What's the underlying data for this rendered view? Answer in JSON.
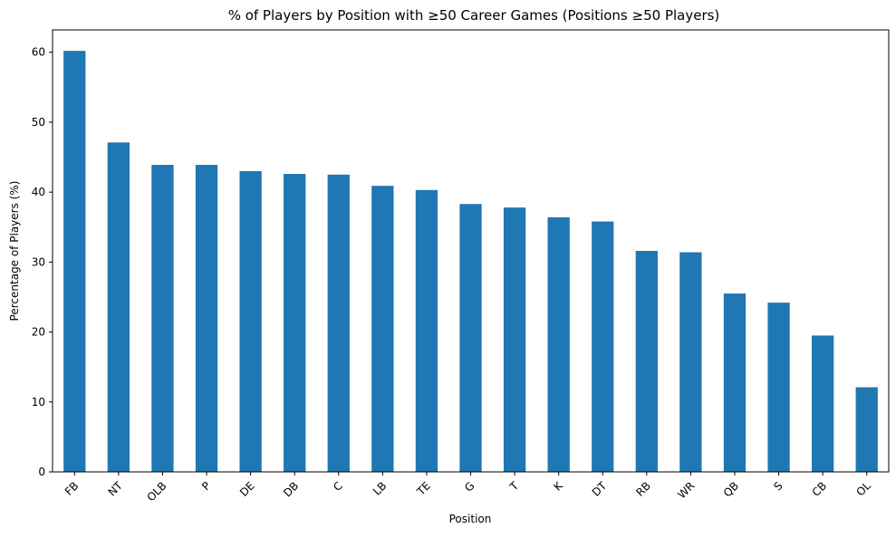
{
  "chart_data": {
    "type": "bar",
    "title": "% of Players by Position with ≥50 Career Games (Positions ≥50 Players)",
    "xlabel": "Position",
    "ylabel": "Percentage of Players (%)",
    "categories": [
      "FB",
      "NT",
      "OLB",
      "P",
      "DE",
      "DB",
      "C",
      "LB",
      "TE",
      "G",
      "T",
      "K",
      "DT",
      "RB",
      "WR",
      "QB",
      "S",
      "CB",
      "OL"
    ],
    "values": [
      60.2,
      47.1,
      43.9,
      43.9,
      43.0,
      42.6,
      42.5,
      40.9,
      40.3,
      38.3,
      37.8,
      36.4,
      35.8,
      31.6,
      31.4,
      25.5,
      24.2,
      19.5,
      12.1
    ],
    "ylim": [
      0,
      63.2
    ],
    "yticks": [
      0,
      10,
      20,
      30,
      40,
      50,
      60
    ],
    "bar_color": "#1f77b4",
    "grid": false,
    "legend": "none",
    "xtick_rotation": 45
  }
}
